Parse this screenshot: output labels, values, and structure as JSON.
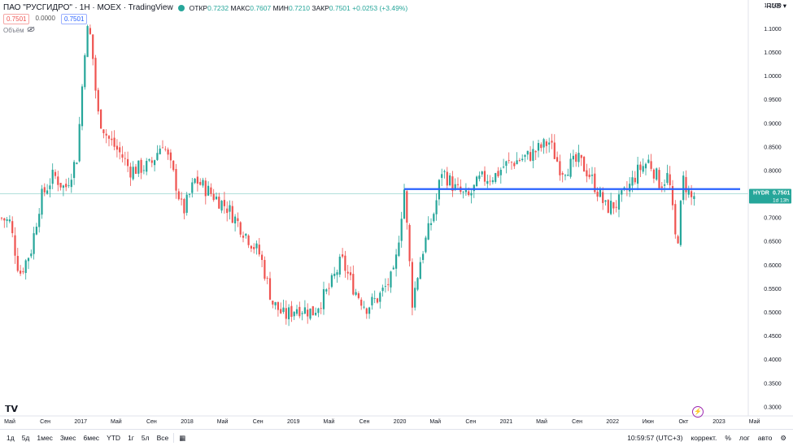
{
  "header": {
    "title": "ПАО \"РУСГИДРО\" · 1Н · MOEX · TradingView",
    "ohlc": {
      "open_label": "ОТКР",
      "open": "0.7232",
      "high_label": "МАКС",
      "high": "0.7607",
      "low_label": "МИН",
      "low": "0.7210",
      "close_label": "ЗАКР",
      "close": "0.7501",
      "change": "+0.0253 (+3.49%)"
    },
    "pills": [
      "0.7501",
      "0.0000",
      "0.7501"
    ],
    "volume_label": "Объём",
    "currency": "RUB"
  },
  "colors": {
    "up": "#26a69a",
    "down": "#ef5350",
    "hline": "#2962ff",
    "ref": "#b2dfdb"
  },
  "icons": [
    "eye-off-icon",
    "dropdown-icon",
    "tradingview-logo-icon",
    "lightning-icon",
    "gear-icon"
  ],
  "price_tag": {
    "symbol": "HYDR",
    "price": "0.7501",
    "countdown": "1d 13h"
  },
  "chart_data": {
    "type": "candlestick",
    "title": "ПАО \"РУСГИДРО\" · 1Н · MOEX",
    "ylim": [
      0.28,
      1.16
    ],
    "y_ticks": [
      "0.3000",
      "0.3500",
      "0.4000",
      "0.4500",
      "0.5000",
      "0.5500",
      "0.6000",
      "0.6500",
      "0.7000",
      "0.7500",
      "0.8000",
      "0.8500",
      "0.9000",
      "0.9500",
      "1.0000",
      "1.0500",
      "1.1000",
      "1.1500"
    ],
    "x_ticks": [
      "Май",
      "Сен",
      "2017",
      "Май",
      "Сен",
      "2018",
      "Май",
      "Сен",
      "2019",
      "Май",
      "Сен",
      "2020",
      "Май",
      "Сен",
      "2021",
      "Май",
      "Сен",
      "2022",
      "Июн",
      "Окт",
      "2023",
      "Май"
    ],
    "keypoints": [
      [
        0,
        0.7
      ],
      [
        12,
        0.69
      ],
      [
        24,
        0.58
      ],
      [
        38,
        0.63
      ],
      [
        50,
        0.74
      ],
      [
        66,
        0.79
      ],
      [
        80,
        0.76
      ],
      [
        95,
        0.83
      ],
      [
        106,
        1.1
      ],
      [
        112,
        1.08
      ],
      [
        120,
        0.92
      ],
      [
        132,
        0.87
      ],
      [
        150,
        0.83
      ],
      [
        160,
        0.8
      ],
      [
        185,
        0.81
      ],
      [
        200,
        0.86
      ],
      [
        215,
        0.78
      ],
      [
        225,
        0.71
      ],
      [
        240,
        0.78
      ],
      [
        260,
        0.75
      ],
      [
        280,
        0.72
      ],
      [
        300,
        0.67
      ],
      [
        320,
        0.62
      ],
      [
        335,
        0.52
      ],
      [
        350,
        0.49
      ],
      [
        365,
        0.51
      ],
      [
        385,
        0.5
      ],
      [
        405,
        0.55
      ],
      [
        420,
        0.61
      ],
      [
        435,
        0.55
      ],
      [
        450,
        0.51
      ],
      [
        465,
        0.53
      ],
      [
        485,
        0.58
      ],
      [
        497,
        0.76
      ],
      [
        507,
        0.52
      ],
      [
        518,
        0.62
      ],
      [
        535,
        0.72
      ],
      [
        543,
        0.8
      ],
      [
        560,
        0.76
      ],
      [
        575,
        0.74
      ],
      [
        590,
        0.78
      ],
      [
        610,
        0.79
      ],
      [
        620,
        0.81
      ],
      [
        650,
        0.83
      ],
      [
        675,
        0.86
      ],
      [
        690,
        0.8
      ],
      [
        712,
        0.82
      ],
      [
        725,
        0.79
      ],
      [
        745,
        0.72
      ],
      [
        760,
        0.73
      ],
      [
        772,
        0.76
      ],
      [
        785,
        0.8
      ],
      [
        798,
        0.82
      ],
      [
        812,
        0.77
      ],
      [
        822,
        0.79
      ],
      [
        832,
        0.63
      ],
      [
        840,
        0.78
      ],
      [
        850,
        0.74
      ],
      [
        856,
        0.75
      ]
    ],
    "current_price": 0.7501,
    "horizontal_line": {
      "price": 0.76,
      "color": "#2962ff"
    }
  },
  "toolbar": {
    "ranges": [
      "1д",
      "5д",
      "1мес",
      "3мес",
      "6мес",
      "YTD",
      "1г",
      "5л",
      "Все"
    ],
    "time": "10:59:57 (UTC+3)",
    "options": [
      "коррект.",
      "%",
      "лог",
      "авто"
    ]
  }
}
